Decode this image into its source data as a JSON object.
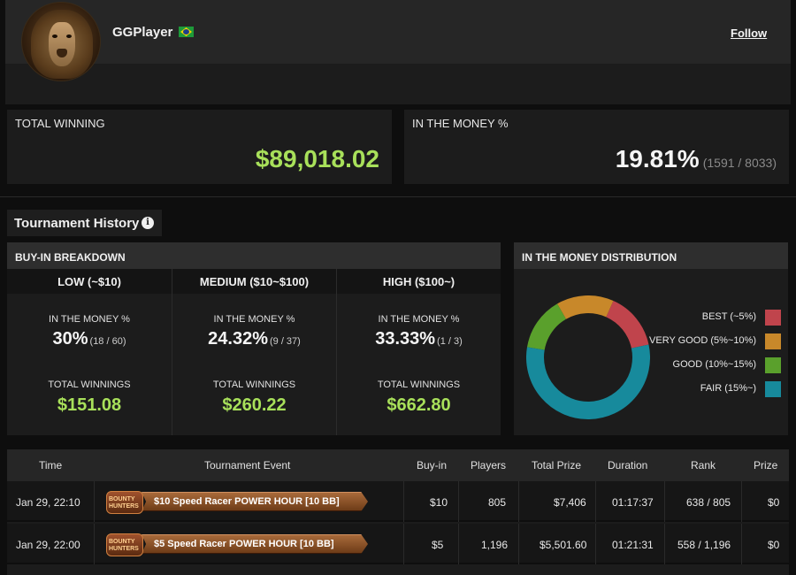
{
  "profile": {
    "player_name": "GGPlayer",
    "country_flag": "brazil-flag",
    "follow_label": "Follow"
  },
  "stats": {
    "total_winning_label": "TOTAL WINNING",
    "total_winning_value": "$89,018.02",
    "itm_label": "IN THE MONEY %",
    "itm_value": "19.81%",
    "itm_detail": "(1591 / 8033)"
  },
  "tournament_history": {
    "tab_label": "Tournament History",
    "info_icon": "i"
  },
  "buyin_breakdown": {
    "title": "BUY-IN BREAKDOWN",
    "columns": [
      {
        "head": "LOW (~$10)",
        "itm_label": "IN THE MONEY %",
        "itm_pct": "30%",
        "itm_detail": "(18 / 60)",
        "win_label": "TOTAL WINNINGS",
        "win_value": "$151.08"
      },
      {
        "head": "MEDIUM ($10~$100)",
        "itm_label": "IN THE MONEY %",
        "itm_pct": "24.32%",
        "itm_detail": "(9 / 37)",
        "win_label": "TOTAL WINNINGS",
        "win_value": "$260.22"
      },
      {
        "head": "HIGH ($100~)",
        "itm_label": "IN THE MONEY %",
        "itm_pct": "33.33%",
        "itm_detail": "(1 / 3)",
        "win_label": "TOTAL WINNINGS",
        "win_value": "$662.80"
      }
    ]
  },
  "itm_distribution": {
    "title": "IN THE MONEY DISTRIBUTION",
    "legend": [
      {
        "label": "BEST (~5%)",
        "color": "#c0444c"
      },
      {
        "label": "VERY GOOD (5%~10%)",
        "color": "#c8882a"
      },
      {
        "label": "GOOD (10%~15%)",
        "color": "#5aa02c"
      },
      {
        "label": "FAIR (15%~)",
        "color": "#178a9c"
      }
    ]
  },
  "chart_data": {
    "type": "pie",
    "categories": [
      "BEST (~5%)",
      "VERY GOOD (5%~10%)",
      "GOOD (10%~15%)",
      "FAIR (15%~)"
    ],
    "values": [
      15,
      15,
      14,
      56
    ],
    "colors": [
      "#c0444c",
      "#c8882a",
      "#5aa02c",
      "#178a9c"
    ]
  },
  "table": {
    "headers": [
      "Time",
      "Tournament Event",
      "Buy-in",
      "Players",
      "Total Prize",
      "Duration",
      "Rank",
      "Prize"
    ],
    "rows": [
      {
        "time": "Jan 29, 22:10",
        "event_logo": "BOUNTY HUNTERS",
        "event": "$10 Speed Racer POWER HOUR [10 BB]",
        "buyin": "$10",
        "players": "805",
        "total_prize": "$7,406",
        "duration": "01:17:37",
        "rank": "638 / 805",
        "prize": "$0"
      },
      {
        "time": "Jan 29, 22:00",
        "event_logo": "BOUNTY HUNTERS",
        "event": "$5 Speed Racer POWER HOUR [10 BB]",
        "buyin": "$5",
        "players": "1,196",
        "total_prize": "$5,501.60",
        "duration": "01:21:31",
        "rank": "558 / 1,196",
        "prize": "$0"
      }
    ]
  }
}
